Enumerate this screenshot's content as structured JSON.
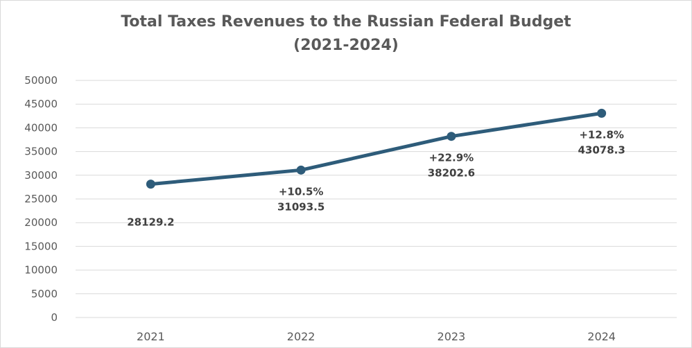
{
  "chart_data": {
    "type": "line",
    "title_line1": "Total Taxes Revenues  to the Russian Federal Budget",
    "title_line2": "(2021-2024)",
    "xlabel": "",
    "ylabel": "",
    "categories": [
      "2021",
      "2022",
      "2023",
      "2024"
    ],
    "series": [
      {
        "values": [
          28129.2,
          31093.5,
          38202.6,
          43078.3
        ],
        "color": "#2e5c7a"
      }
    ],
    "value_labels": [
      "28129.2",
      "31093.5",
      "38202.6",
      "43078.3"
    ],
    "growth_labels": [
      "",
      "+10.5%",
      "+22.9%",
      "+12.8%"
    ],
    "ylim": [
      0,
      50000
    ],
    "y_ticks": [
      0,
      5000,
      10000,
      15000,
      20000,
      25000,
      30000,
      35000,
      40000,
      45000,
      50000
    ],
    "y_tick_labels": [
      "0",
      "5000",
      "10000",
      "15000",
      "20000",
      "25000",
      "30000",
      "35000",
      "40000",
      "45000",
      "50000"
    ],
    "grid": true,
    "legend": "none",
    "gridline_color": "#d9d9d9",
    "text_color": "#595959",
    "label_color": "#404040"
  }
}
